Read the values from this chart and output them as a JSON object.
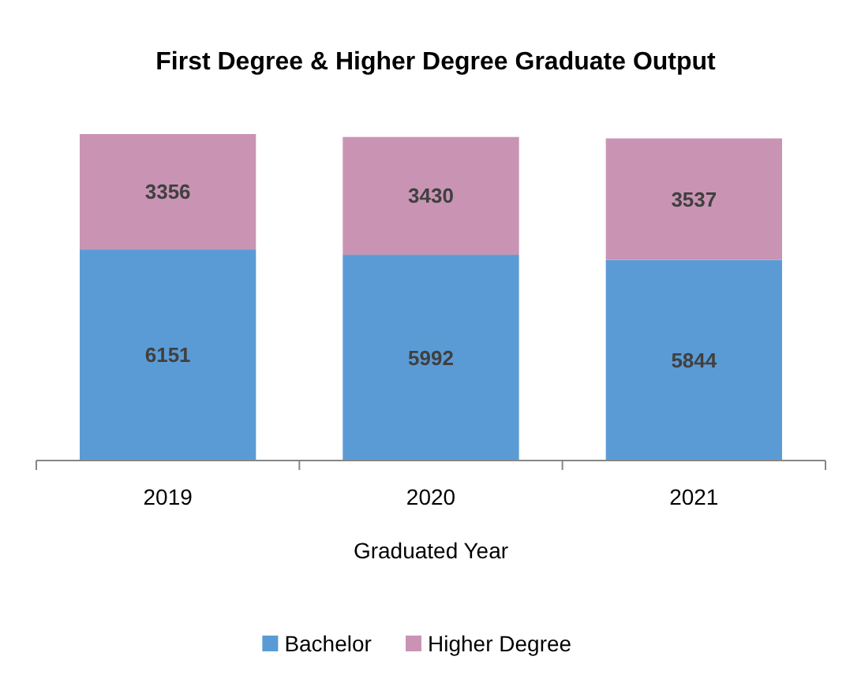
{
  "chart_data": {
    "type": "bar",
    "title": "First Degree & Higher Degree Graduate Output",
    "xlabel": "Graduated Year",
    "categories": [
      "2019",
      "2020",
      "2021"
    ],
    "stacked": true,
    "data_labels": true,
    "legend": "bottom",
    "grid": false,
    "series": [
      {
        "name": "Bachelor",
        "color": "#5b9bd5",
        "values": [
          6151,
          5992,
          5844
        ]
      },
      {
        "name": "Higher Degree",
        "color": "#c994b4",
        "values": [
          3356,
          3430,
          3537
        ]
      }
    ]
  }
}
